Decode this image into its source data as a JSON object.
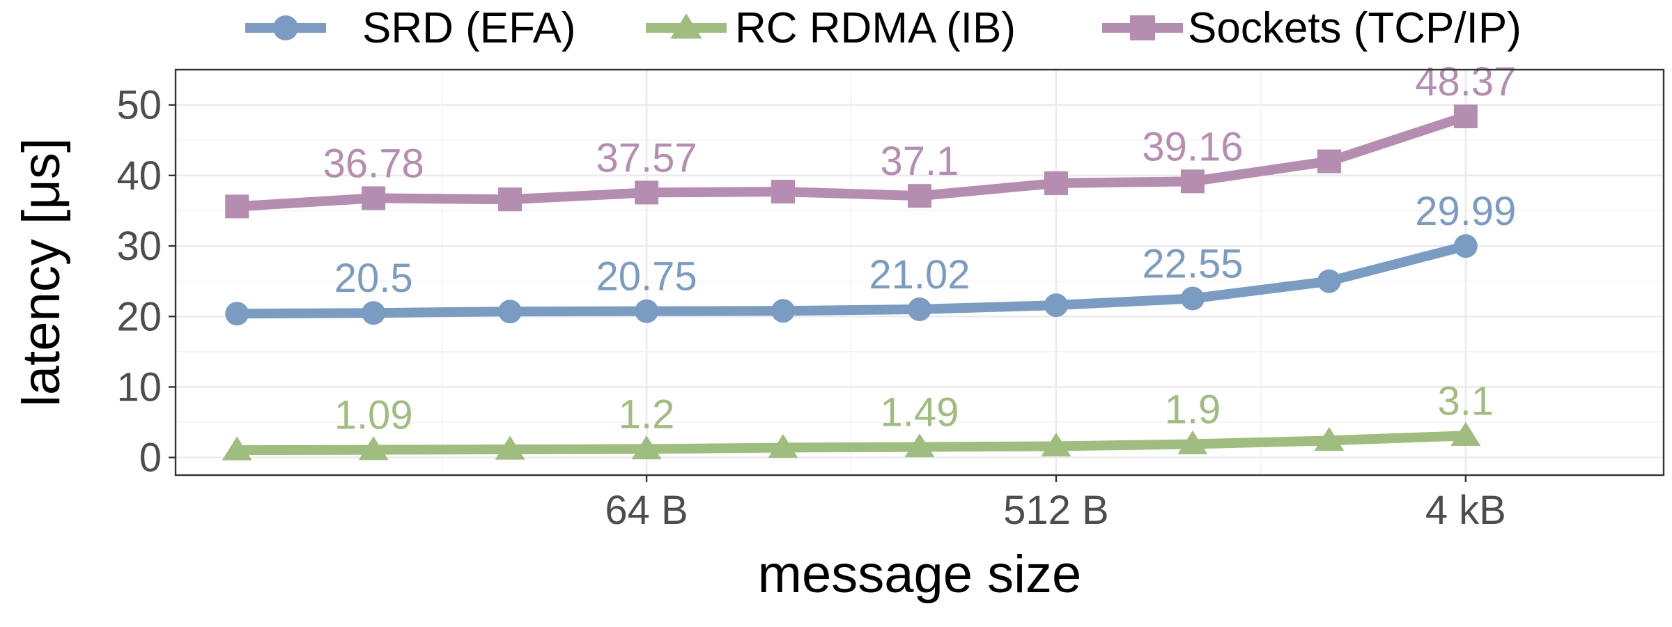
{
  "chart_data": {
    "type": "line",
    "xlabel": "message size",
    "ylabel": "latency [μs]",
    "x_scale": "log2",
    "x_bytes": [
      8,
      16,
      32,
      64,
      128,
      256,
      512,
      1024,
      2048,
      4096,
      8192
    ],
    "x_ticks": [
      {
        "x": 64,
        "label": "64 B"
      },
      {
        "x": 512,
        "label": "512 B"
      },
      {
        "x": 4096,
        "label": "4 kB"
      }
    ],
    "ylim": [
      -2.5,
      55
    ],
    "y_ticks": [
      0,
      10,
      20,
      30,
      40,
      50
    ],
    "grid": true,
    "legend_position": "top",
    "series": [
      {
        "name": "SRD (EFA)",
        "marker": "circle",
        "color": "#7b9cc2",
        "values": [
          20.4,
          20.5,
          20.7,
          20.75,
          20.8,
          21.02,
          21.6,
          22.55,
          25.0,
          29.99
        ],
        "value_x": [
          8,
          16,
          32,
          64,
          128,
          256,
          512,
          1024,
          2048,
          4096
        ],
        "labels": [
          {
            "x": 16,
            "value": 20.5,
            "text": "20.5"
          },
          {
            "x": 64,
            "value": 20.75,
            "text": "20.75"
          },
          {
            "x": 256,
            "value": 21.02,
            "text": "21.02"
          },
          {
            "x": 1024,
            "value": 22.55,
            "text": "22.55"
          },
          {
            "x": 4096,
            "value": 29.99,
            "text": "29.99"
          }
        ]
      },
      {
        "name": "RC RDMA (IB)",
        "marker": "triangle",
        "color": "#9fbd7f",
        "values": [
          1.05,
          1.09,
          1.15,
          1.2,
          1.4,
          1.49,
          1.6,
          1.9,
          2.4,
          3.1
        ],
        "value_x": [
          8,
          16,
          32,
          64,
          128,
          256,
          512,
          1024,
          2048,
          4096
        ],
        "labels": [
          {
            "x": 16,
            "value": 1.09,
            "text": "1.09"
          },
          {
            "x": 64,
            "value": 1.2,
            "text": "1.2"
          },
          {
            "x": 256,
            "value": 1.49,
            "text": "1.49"
          },
          {
            "x": 1024,
            "value": 1.9,
            "text": "1.9"
          },
          {
            "x": 4096,
            "value": 3.1,
            "text": "3.1"
          }
        ]
      },
      {
        "name": "Sockets (TCP/IP)",
        "marker": "square",
        "color": "#b48db0",
        "values": [
          35.6,
          36.78,
          36.6,
          37.57,
          37.7,
          37.1,
          38.9,
          39.16,
          42.0,
          48.37
        ],
        "value_x": [
          8,
          16,
          32,
          64,
          128,
          256,
          512,
          1024,
          2048,
          4096
        ],
        "labels": [
          {
            "x": 16,
            "value": 36.78,
            "text": "36.78"
          },
          {
            "x": 64,
            "value": 37.57,
            "text": "37.57"
          },
          {
            "x": 256,
            "value": 37.1,
            "text": "37.1"
          },
          {
            "x": 1024,
            "value": 39.16,
            "text": "39.16"
          },
          {
            "x": 4096,
            "value": 48.37,
            "text": "48.37"
          }
        ]
      }
    ]
  }
}
